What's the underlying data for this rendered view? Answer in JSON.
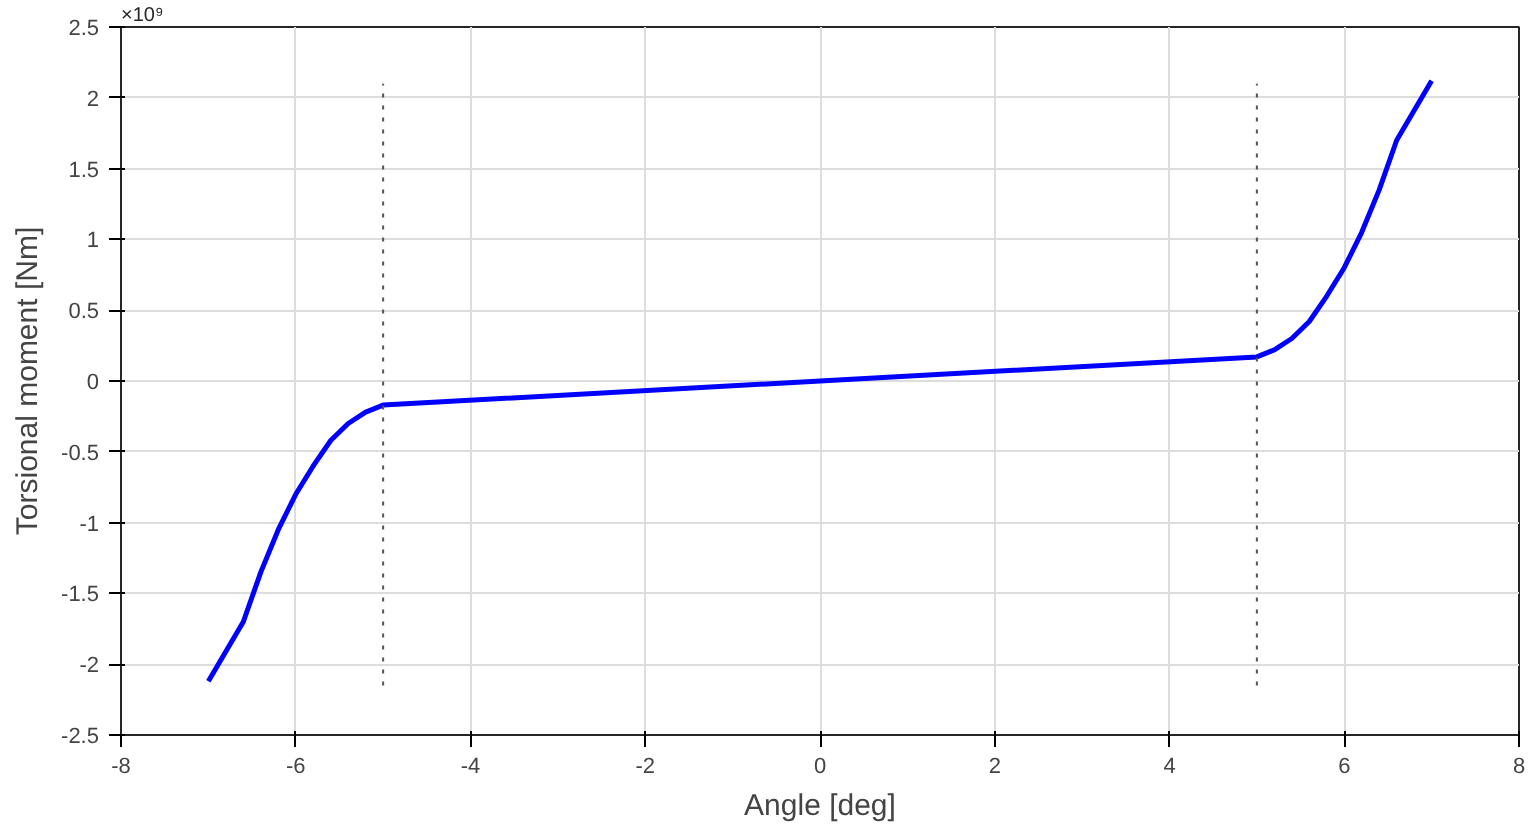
{
  "chart_data": {
    "type": "line",
    "xlabel": "Angle [deg]",
    "ylabel": "Torsional moment [Nm]",
    "annotations": [
      "×10⁹"
    ],
    "xlim": [
      -8,
      8
    ],
    "xticks": [
      -8,
      -6,
      -4,
      -2,
      0,
      2,
      4,
      6,
      8
    ],
    "ylim": [
      -2.5,
      2.5
    ],
    "yticks": [
      -2.5,
      -2,
      -1.5,
      -1,
      -0.5,
      0,
      0.5,
      1,
      1.5,
      2,
      2.5
    ],
    "grid": true,
    "line_style": "solid",
    "marker": "none",
    "series": [
      {
        "color": "#0000ff",
        "x": [
          -7,
          -6.6,
          -6.4,
          -6.2,
          -6,
          -5.8,
          -5.6,
          -5.4,
          -5.2,
          -5,
          0,
          5,
          5.2,
          5.4,
          5.6,
          5.8,
          6,
          6.2,
          6.4,
          6.6,
          7
        ],
        "values": [
          -2.12,
          -1.7,
          -1.35,
          -1.05,
          -0.8,
          -0.6,
          -0.42,
          -0.3,
          -0.22,
          -0.17,
          0,
          0.17,
          0.22,
          0.3,
          0.42,
          0.6,
          0.8,
          1.05,
          1.35,
          1.7,
          2.12
        ]
      },
      {
        "color": "#555555",
        "line_style": "dotted",
        "x": [
          -5,
          -5
        ],
        "values": [
          -2.15,
          2.1
        ]
      },
      {
        "color": "#555555",
        "line_style": "dotted",
        "x": [
          5,
          5
        ],
        "values": [
          -2.15,
          2.1
        ]
      }
    ]
  }
}
